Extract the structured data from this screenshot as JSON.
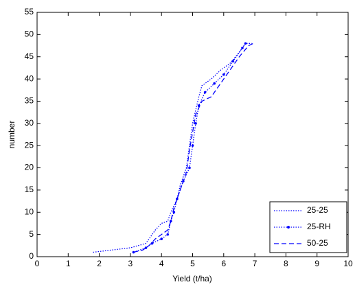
{
  "chart_data": {
    "type": "line",
    "xlabel": "Yield (t/ha)",
    "ylabel": "number",
    "xlim": [
      0,
      10
    ],
    "xticks": [
      0,
      1,
      2,
      3,
      4,
      5,
      6,
      7,
      8,
      9,
      10
    ],
    "ylim": [
      0,
      55
    ],
    "yticks": [
      0,
      5,
      10,
      15,
      20,
      25,
      30,
      35,
      40,
      45,
      50,
      55
    ],
    "legend": "lower right",
    "series": [
      {
        "name": "25-25",
        "color": "#0000ff",
        "line_style": "dotted",
        "marker": false,
        "x": [
          1.8,
          3.0,
          3.5,
          3.8,
          4.0,
          4.2,
          4.3,
          4.5,
          4.6,
          4.8,
          4.9,
          5.0,
          5.1,
          5.2,
          5.3,
          5.6,
          5.9,
          6.2,
          6.5,
          6.7,
          6.9
        ],
        "values": [
          1,
          2,
          3,
          6,
          7.5,
          8,
          10,
          13,
          16,
          20,
          25,
          30,
          33,
          36,
          38.5,
          40,
          42,
          43.5,
          46,
          48,
          48
        ]
      },
      {
        "name": "25-RH",
        "color": "#0000ff",
        "line_style": "dotted",
        "marker": true,
        "x": [
          3.1,
          3.5,
          3.7,
          4.0,
          4.2,
          4.3,
          4.4,
          4.5,
          4.7,
          4.9,
          5.0,
          5.1,
          5.2,
          5.4,
          5.7,
          6.0,
          6.3,
          6.6,
          6.7
        ],
        "values": [
          1,
          2,
          3,
          4,
          5,
          8,
          10,
          13,
          17,
          20,
          25,
          30,
          34,
          37,
          39,
          41,
          44,
          47,
          48
        ]
      },
      {
        "name": "50-25",
        "color": "#0000ff",
        "line_style": "dashed",
        "marker": false,
        "x": [
          3.1,
          3.4,
          3.6,
          3.8,
          4.0,
          4.2,
          4.3,
          4.4,
          4.6,
          4.8,
          4.9,
          5.0,
          5.1,
          5.3,
          5.6,
          5.8,
          6.0,
          6.3,
          6.5,
          6.8,
          6.95
        ],
        "values": [
          1,
          1.5,
          2.5,
          4,
          5,
          6,
          8,
          11,
          15,
          19,
          24,
          28,
          32,
          35,
          36,
          38,
          40,
          43,
          45,
          47.5,
          48
        ]
      }
    ]
  }
}
